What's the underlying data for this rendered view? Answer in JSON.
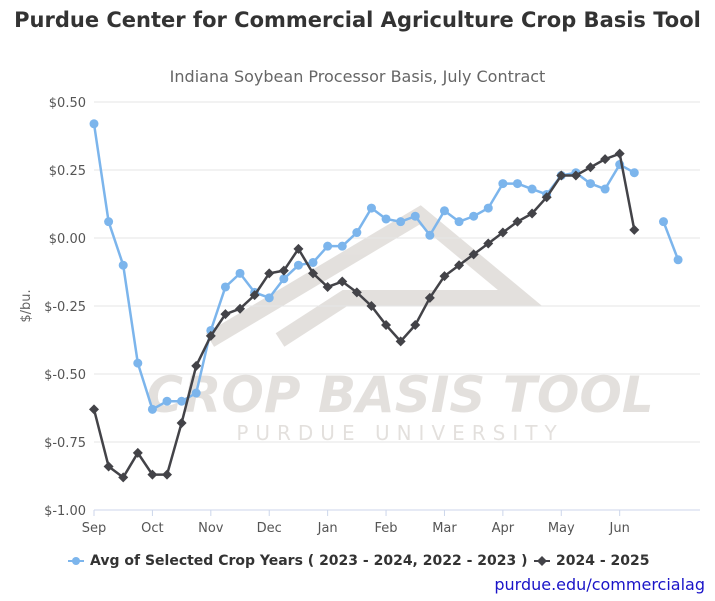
{
  "title": "Purdue Center for Commercial Agriculture Crop Basis Tool",
  "subtitle": "Indiana Soybean Processor Basis, July Contract",
  "credit": "purdue.edu/commercialag",
  "watermark": {
    "line1": "CROP BASIS TOOL",
    "line2": "PURDUE UNIVERSITY"
  },
  "chart_data": {
    "type": "line",
    "ylabel": "$/bu.",
    "ylim": [
      -1.0,
      0.5
    ],
    "yticks": [
      0.5,
      0.25,
      0.0,
      -0.25,
      -0.5,
      -0.75,
      -1.0
    ],
    "ytick_labels": [
      "$0.50",
      "$0.25",
      "$0.00",
      "$-0.25",
      "$-0.50",
      "$-0.75",
      "$-1.00"
    ],
    "xtick_labels": [
      "Sep",
      "Oct",
      "Nov",
      "Dec",
      "Jan",
      "Feb",
      "Mar",
      "Apr",
      "May",
      "Jun"
    ],
    "xlim": [
      0,
      41.5
    ],
    "grid": true,
    "legend_position": "bottom",
    "series": [
      {
        "name": "Avg of Selected Crop Years ( 2023 - 2024, 2022 - 2023 )",
        "color": "#7cb5ec",
        "marker": "circle",
        "x": [
          0,
          1,
          2,
          3,
          4,
          5,
          6,
          7,
          8,
          9,
          10,
          11,
          12,
          13,
          14,
          15,
          16,
          17,
          18,
          19,
          20,
          21,
          22,
          23,
          24,
          25,
          26,
          27,
          28,
          29,
          30,
          31,
          32,
          33,
          34,
          35,
          36,
          37,
          38,
          39,
          40
        ],
        "values": [
          0.42,
          0.06,
          -0.1,
          -0.46,
          -0.63,
          -0.6,
          -0.6,
          -0.57,
          -0.34,
          -0.18,
          -0.13,
          -0.2,
          -0.22,
          -0.15,
          -0.1,
          -0.09,
          -0.03,
          -0.03,
          0.02,
          0.11,
          0.07,
          0.06,
          0.08,
          0.01,
          0.1,
          0.06,
          0.08,
          0.11,
          0.2,
          0.2,
          0.18,
          0.16,
          0.23,
          0.24,
          0.2,
          0.18,
          0.27,
          0.24,
          null,
          0.06,
          -0.08
        ]
      },
      {
        "name": "2024 - 2025",
        "color": "#434348",
        "marker": "diamond",
        "x": [
          0,
          1,
          2,
          3,
          4,
          5,
          6,
          7,
          8,
          9,
          10,
          11,
          12,
          13,
          14,
          15,
          16,
          17,
          18,
          19,
          20,
          21,
          22,
          23,
          24,
          25,
          26,
          27,
          28,
          29,
          30,
          31,
          32,
          33,
          34,
          35,
          36,
          37
        ],
        "values": [
          -0.63,
          -0.84,
          -0.88,
          -0.79,
          -0.87,
          -0.87,
          -0.68,
          -0.47,
          -0.36,
          -0.28,
          -0.26,
          -0.21,
          -0.13,
          -0.12,
          -0.04,
          -0.13,
          -0.18,
          -0.16,
          -0.2,
          -0.25,
          -0.32,
          -0.38,
          -0.32,
          -0.22,
          -0.14,
          -0.1,
          -0.06,
          -0.02,
          0.02,
          0.06,
          0.09,
          0.15,
          0.23,
          0.23,
          0.26,
          0.29,
          0.31,
          0.03
        ]
      }
    ]
  }
}
